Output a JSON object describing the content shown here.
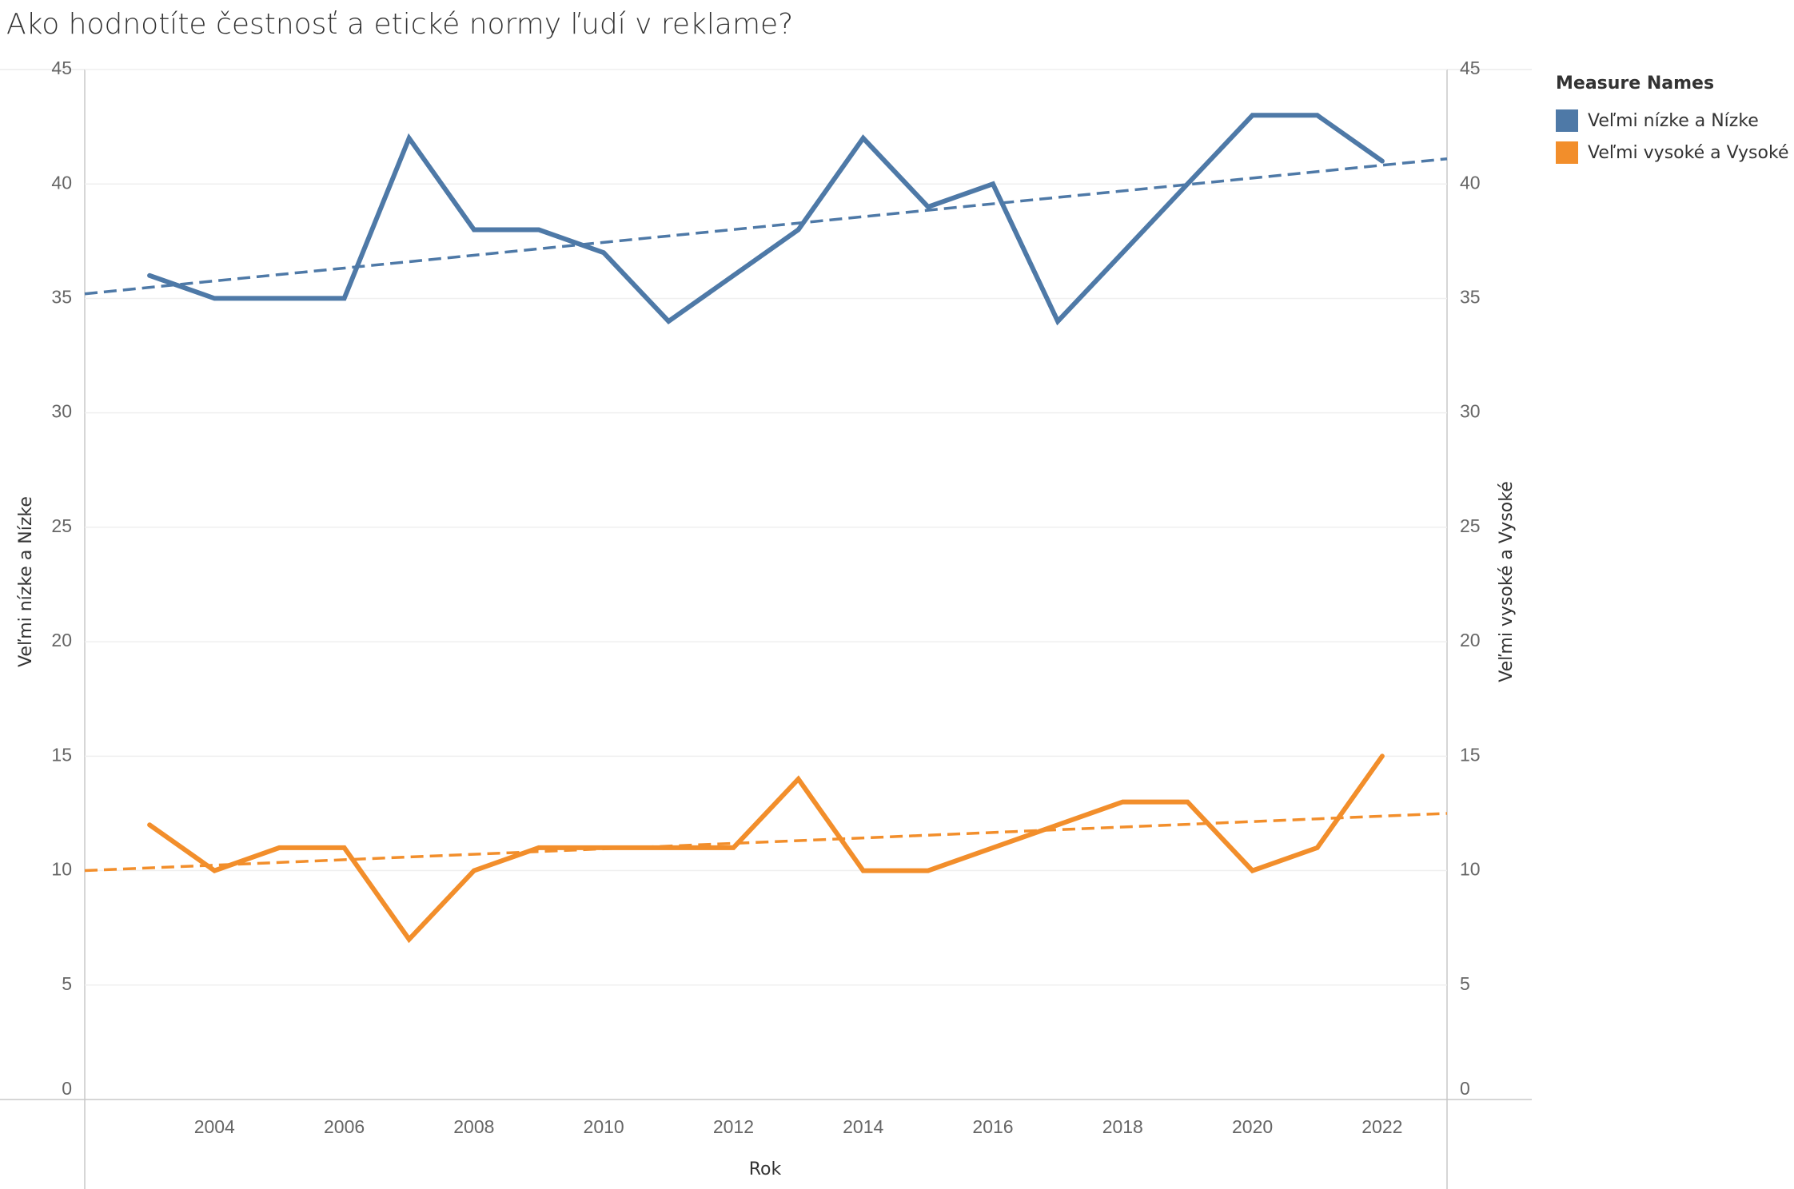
{
  "chart_data": {
    "type": "line",
    "title": "Ako hodnotíte čestnosť a etické normy ľudí v reklame?",
    "xlabel": "Rok",
    "ylabel_left": "Veľmi nízke a Nízke",
    "ylabel_right": "Veľmi vysoké a Vysoké",
    "x": [
      2003,
      2004,
      2005,
      2006,
      2007,
      2008,
      2009,
      2010,
      2011,
      2012,
      2013,
      2014,
      2015,
      2016,
      2017,
      2018,
      2019,
      2020,
      2021,
      2022
    ],
    "x_ticks": [
      "2004",
      "2006",
      "2008",
      "2010",
      "2012",
      "2014",
      "2016",
      "2018",
      "2020",
      "2022"
    ],
    "y_ticks": [
      "0",
      "5",
      "10",
      "15",
      "20",
      "25",
      "30",
      "35",
      "40",
      "45"
    ],
    "xlim": [
      2002,
      2023
    ],
    "ylim": [
      0,
      45
    ],
    "grid": true,
    "legend": {
      "title": "Measure Names",
      "position": "right"
    },
    "series": [
      {
        "name": "Veľmi nízke a Nízke",
        "color": "#4e79a7",
        "axis": "left",
        "values": [
          36,
          35,
          35,
          35,
          42,
          38,
          38,
          37,
          34,
          36,
          38,
          42,
          39,
          40,
          34,
          37,
          40,
          43,
          43,
          41
        ],
        "trend": {
          "style": "dashed",
          "start": [
            2002,
            35.2
          ],
          "end": [
            2023,
            41.1
          ]
        }
      },
      {
        "name": "Veľmi vysoké a Vysoké",
        "color": "#f28e2b",
        "axis": "right",
        "values": [
          12,
          10,
          11,
          11,
          7,
          10,
          11,
          11,
          11,
          11,
          14,
          10,
          10,
          11,
          12,
          13,
          13,
          10,
          11,
          15
        ],
        "trend": {
          "style": "dashed",
          "start": [
            2002,
            10.0
          ],
          "end": [
            2023,
            12.5
          ]
        }
      }
    ]
  }
}
